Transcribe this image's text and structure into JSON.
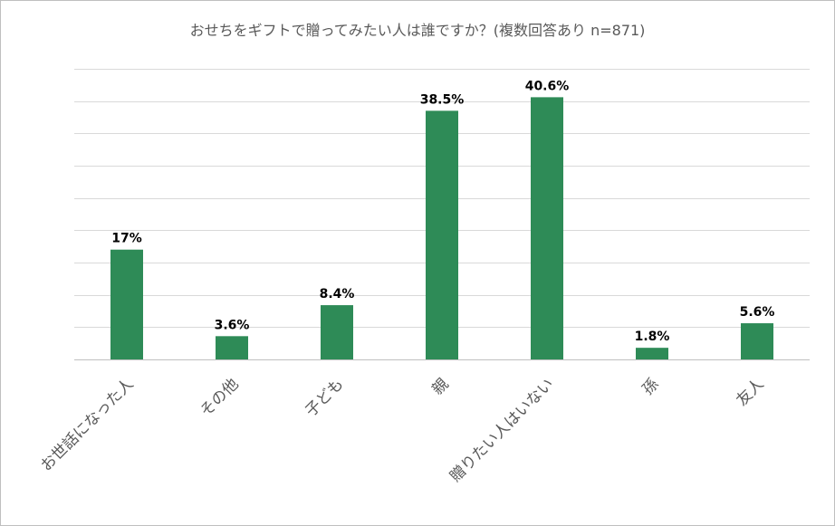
{
  "chart_data": {
    "type": "bar",
    "title": "おせちをギフトで贈ってみたい人は誰ですか？(複数回答あり n=871)",
    "categories": [
      "お世話になった人",
      "その他",
      "子ども",
      "親",
      "贈りたい人はいない",
      "孫",
      "友人"
    ],
    "values": [
      17,
      3.6,
      8.4,
      38.5,
      40.6,
      1.8,
      5.6
    ],
    "data_labels": [
      "17%",
      "3.6%",
      "8.4%",
      "38.5%",
      "40.6%",
      "1.8%",
      "5.6%"
    ],
    "xlabel": "",
    "ylabel": "",
    "ylim": [
      0,
      45
    ],
    "grid": true,
    "legend": "none",
    "colors": {
      "bar": "#2e8b57",
      "grid": "#d9d9d9",
      "text": "#595959"
    }
  }
}
